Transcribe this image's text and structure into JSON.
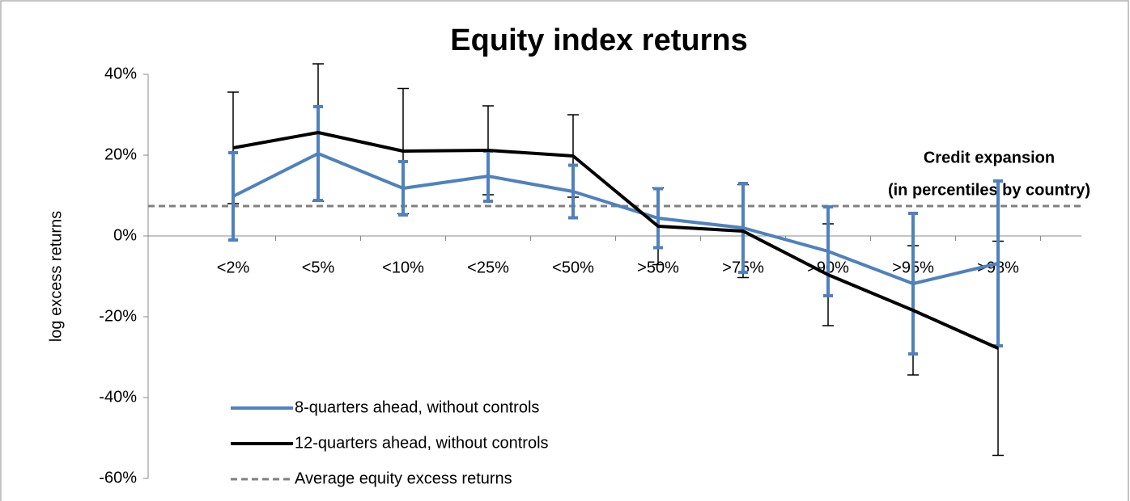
{
  "chart_data": {
    "type": "line",
    "title": "Equity index returns",
    "y_label": "log excess returns",
    "annotation": [
      "Credit expansion",
      "(in percentiles by country)"
    ],
    "categories": [
      "<2%",
      "<5%",
      "<10%",
      "<25%",
      "<50%",
      ">50%",
      ">75%",
      ">90%",
      ">95%",
      ">98%"
    ],
    "series": [
      {
        "name": "8-quarters ahead, without controls",
        "color": "#4f81bd",
        "values": [
          9.8,
          20.4,
          11.8,
          14.8,
          11.0,
          4.4,
          2.0,
          -3.8,
          -11.8,
          -6.8
        ],
        "errors": [
          10.8,
          11.6,
          6.6,
          6.2,
          6.5,
          7.3,
          11.0,
          11.0,
          17.4,
          20.4
        ]
      },
      {
        "name": "12-quarters ahead, without controls",
        "color": "#000000",
        "values": [
          21.8,
          25.6,
          21.0,
          21.2,
          19.8,
          2.4,
          1.2,
          -9.6,
          -18.4,
          -27.8
        ],
        "errors": [
          13.8,
          17.0,
          15.5,
          11.0,
          10.2,
          9.5,
          11.5,
          12.6,
          16.0,
          26.5
        ]
      }
    ],
    "reference_line": {
      "name": "Average equity excess returns",
      "value": 7.4,
      "color": "#808080"
    },
    "ylim": [
      -60,
      40
    ],
    "yticks": [
      {
        "value": 40,
        "label": "40%"
      },
      {
        "value": 20,
        "label": "20%"
      },
      {
        "value": 0,
        "label": "0%"
      },
      {
        "value": -20,
        "label": "-20%"
      },
      {
        "value": -40,
        "label": "-40%"
      },
      {
        "value": -60,
        "label": "-60%"
      }
    ]
  }
}
